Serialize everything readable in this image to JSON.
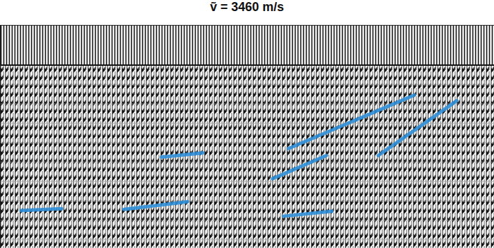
{
  "chart_data": {
    "type": "line",
    "title": "ṽ = 3460 m/s",
    "xlim": [
      0,
      100
    ],
    "ylim": [
      0,
      100
    ],
    "tick_labels": false,
    "series": [
      {
        "color": "#2f8fd8",
        "x": [
          4.2,
          12.4
        ],
        "values": [
          83.1,
          82.2
        ]
      },
      {
        "color": "#2f8fd8",
        "x": [
          25.0,
          37.9
        ],
        "values": [
          82.5,
          79.1
        ]
      },
      {
        "color": "#2f8fd8",
        "x": [
          32.6,
          41.0
        ],
        "values": [
          59.1,
          57.2
        ]
      },
      {
        "color": "#2f8fd8",
        "x": [
          58.3,
          83.8
        ],
        "values": [
          55.3,
          31.3
        ]
      },
      {
        "color": "#2f8fd8",
        "x": [
          55.1,
          66.0
        ],
        "values": [
          68.8,
          58.4
        ]
      },
      {
        "color": "#2f8fd8",
        "x": [
          76.5,
          92.4
        ],
        "values": [
          58.4,
          33.8
        ]
      },
      {
        "color": "#2f8fd8",
        "x": [
          57.3,
          67.1
        ],
        "values": [
          85.6,
          83.4
        ]
      }
    ]
  }
}
